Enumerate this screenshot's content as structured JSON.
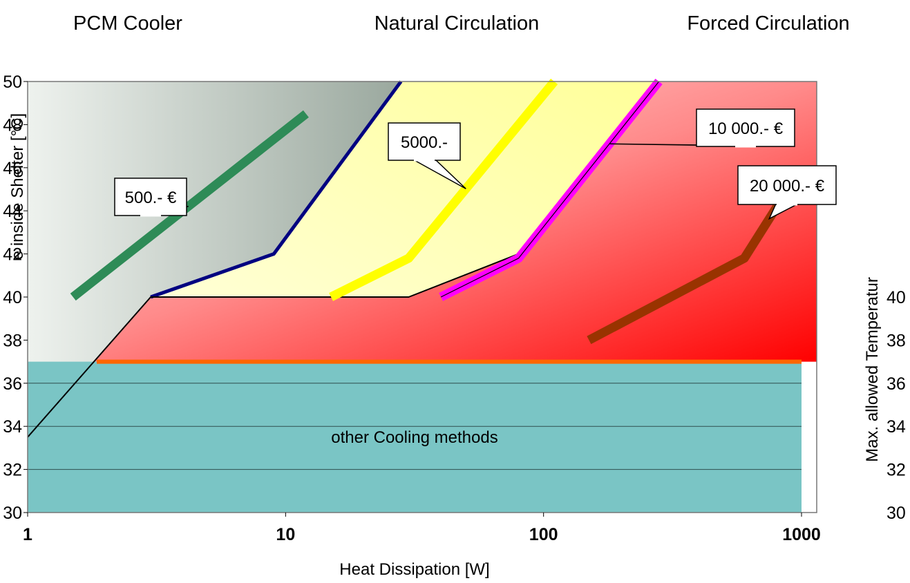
{
  "legend": {
    "pcm_label": "PCM Cooler",
    "natural_label": "Natural Circulation",
    "forced_label": "Forced Circulation",
    "pcm_color": "#66ff66",
    "natural_color": "#ffff00",
    "forced_color": "#ff6600"
  },
  "chart_data": {
    "type": "line",
    "xscale": "log",
    "xlim": [
      1,
      1000
    ],
    "ylim": [
      30,
      50
    ],
    "x_ticks": [
      "1",
      "10",
      "100",
      "1000"
    ],
    "y_ticks_left": [
      "50",
      "48",
      "46",
      "44",
      "42",
      "40",
      "38",
      "36",
      "34",
      "32",
      "30"
    ],
    "y_ticks_right": [
      "40",
      "38",
      "36",
      "34",
      "32",
      "30"
    ],
    "xlabel": "Heat Dissipation [W]",
    "ylabel": "e inside Shelter [°C]",
    "ylabel_right": "Max. allowed Temperatur",
    "region_label": "other Cooling methods",
    "limit_line_y": 37,
    "series": [
      {
        "name": "500.- €",
        "color": "#2e8b57",
        "x": [
          1.5,
          12
        ],
        "y": [
          40,
          48.5
        ]
      },
      {
        "name": "5000.-",
        "color": "#ffff00",
        "x": [
          15,
          30,
          110
        ],
        "y": [
          40,
          41.8,
          50
        ]
      },
      {
        "name": "10 000.- €",
        "color": "#ff00ff",
        "x": [
          40,
          80,
          280
        ],
        "y": [
          40,
          41.8,
          50
        ]
      },
      {
        "name": "20 000.- €",
        "color": "#993300",
        "x": [
          150,
          600,
          1000
        ],
        "y": [
          38,
          41.8,
          46
        ]
      }
    ],
    "boundaries": [
      {
        "x": [
          1,
          3,
          9,
          28
        ],
        "y": [
          33.5,
          40,
          42,
          50
        ]
      },
      {
        "x": [
          3,
          30,
          80,
          280
        ],
        "y": [
          40,
          40,
          42,
          50
        ]
      }
    ],
    "callouts": [
      {
        "text": "500.- €"
      },
      {
        "text": "5000.-"
      },
      {
        "text": "10 000.- €"
      },
      {
        "text": "20 000.- €"
      }
    ]
  }
}
